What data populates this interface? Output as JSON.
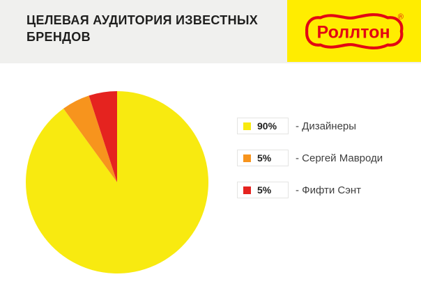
{
  "header": {
    "title": "ЦЕЛЕВАЯ АУДИТОРИЯ ИЗВЕСТНЫХ БРЕНДОВ",
    "background_color": "#f0f0ee",
    "brand": {
      "logo_text": "Роллтон",
      "registered_mark": "®",
      "background_color": "#ffed00",
      "logo_color": "#e30613"
    }
  },
  "chart_data": {
    "type": "pie",
    "title": "ЦЕЛЕВАЯ АУДИТОРИЯ ИЗВЕСТНЫХ БРЕНДОВ",
    "start_angle_deg": 0,
    "direction": "clockwise",
    "legend_position": "right",
    "slices": [
      {
        "label": "Дизайнеры",
        "value": 90,
        "percent_label": "90%",
        "legend_text": "- Дизайнеры",
        "color": "#f8ea10"
      },
      {
        "label": "Сергей Мавроди",
        "value": 5,
        "percent_label": "5%",
        "legend_text": "- Сергей Мавроди",
        "color": "#f7941d"
      },
      {
        "label": "Фифти Сэнт",
        "value": 5,
        "percent_label": "5%",
        "legend_text": "- Фифти Сэнт",
        "color": "#e5231f"
      }
    ]
  }
}
